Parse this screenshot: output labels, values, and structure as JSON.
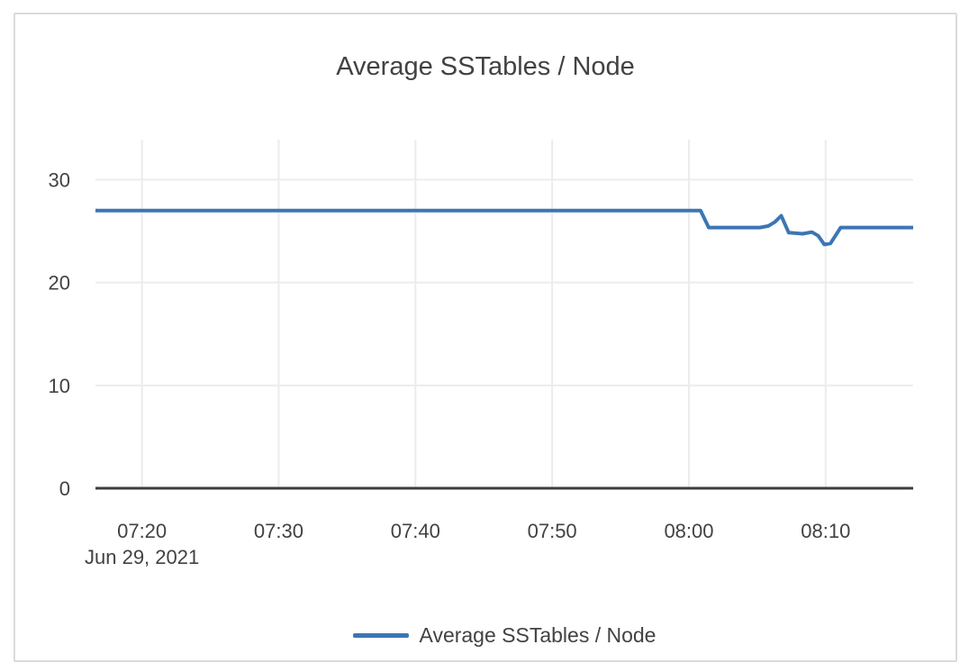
{
  "card": {
    "border_color": "#dbdbdb",
    "background": "#ffffff"
  },
  "chart_data": {
    "type": "line",
    "title": "Average SSTables / Node",
    "xlabel": "",
    "ylabel": "",
    "x_axis_date_label": "Jun 29, 2021",
    "x_unit": "minutes_after_07:00",
    "xlim": [
      16.6,
      76.4
    ],
    "ylim": [
      0,
      33.9
    ],
    "grid": true,
    "legend_position": "bottom",
    "y_ticks": [
      {
        "value": 0,
        "label": "0"
      },
      {
        "value": 10,
        "label": "10"
      },
      {
        "value": 20,
        "label": "20"
      },
      {
        "value": 30,
        "label": "30"
      }
    ],
    "x_ticks": [
      {
        "value": 20,
        "label": "07:20"
      },
      {
        "value": 30,
        "label": "07:30"
      },
      {
        "value": 40,
        "label": "07:40"
      },
      {
        "value": 50,
        "label": "07:50"
      },
      {
        "value": 60,
        "label": "08:00"
      },
      {
        "value": 70,
        "label": "08:10"
      }
    ],
    "series": [
      {
        "name": "Average SSTables / Node",
        "color": "#3c76b4",
        "points": [
          [
            16.6,
            27
          ],
          [
            60.85,
            27
          ],
          [
            61.45,
            25.35
          ],
          [
            65.2,
            25.35
          ],
          [
            65.8,
            25.5
          ],
          [
            66.3,
            25.9
          ],
          [
            66.75,
            26.5
          ],
          [
            67.3,
            24.85
          ],
          [
            68.3,
            24.75
          ],
          [
            69.0,
            24.9
          ],
          [
            69.45,
            24.55
          ],
          [
            69.9,
            23.7
          ],
          [
            70.35,
            23.8
          ],
          [
            71.1,
            25.35
          ],
          [
            76.4,
            25.35
          ]
        ]
      }
    ],
    "colors": {
      "grid": "#ececec",
      "axis": "#3d3d3d",
      "text": "#424242"
    }
  }
}
